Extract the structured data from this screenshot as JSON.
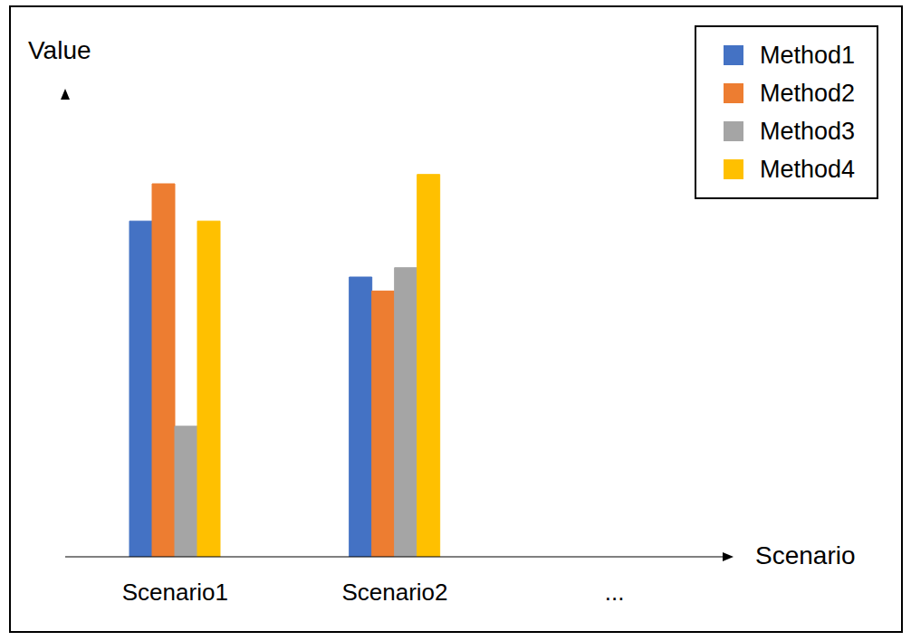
{
  "chart_data": {
    "type": "bar",
    "x_label": "Scenario",
    "y_label": "Value",
    "categories": [
      "Scenario1",
      "Scenario2",
      "..."
    ],
    "series": [
      {
        "name": "Method1",
        "color": "#4472c4",
        "values": [
          72,
          60,
          null
        ]
      },
      {
        "name": "Method2",
        "color": "#ed7d31",
        "values": [
          80,
          57,
          null
        ]
      },
      {
        "name": "Method3",
        "color": "#a5a5a5",
        "values": [
          28,
          62,
          null
        ]
      },
      {
        "name": "Method4",
        "color": "#ffc000",
        "values": [
          72,
          82,
          null
        ]
      }
    ],
    "ylim": [
      0,
      100
    ],
    "legend": "top-right",
    "grid": false,
    "tick_labels": "x"
  }
}
